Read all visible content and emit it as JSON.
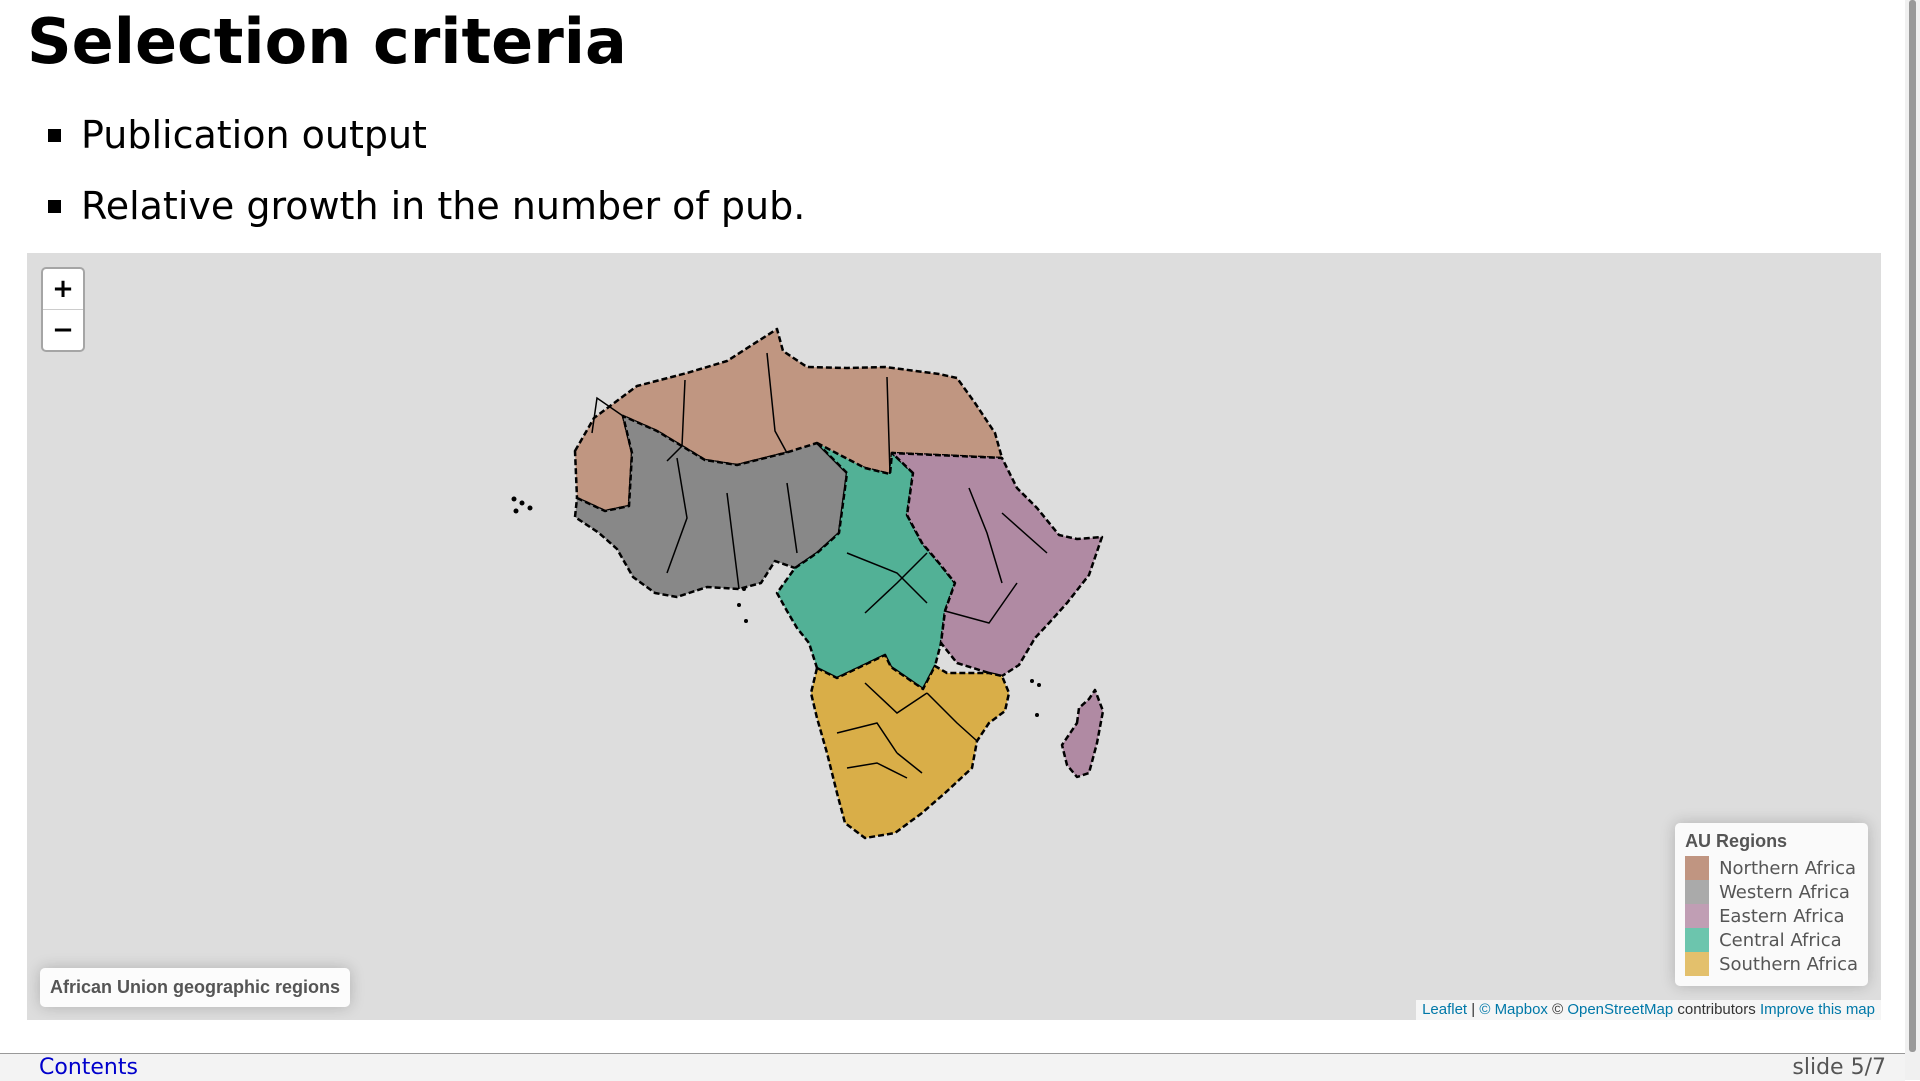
{
  "slide": {
    "title": "Selection criteria",
    "bullets": [
      "Publication output",
      "Relative growth in the number of pub."
    ]
  },
  "map": {
    "zoom_in": "+",
    "zoom_out": "−",
    "info_label": "African Union geographic regions",
    "legend": {
      "title": "AU Regions",
      "items": [
        {
          "label": "Northern Africa",
          "color": "#a66a4d"
        },
        {
          "label": "Western Africa",
          "color": "#888888"
        },
        {
          "label": "Eastern Africa",
          "color": "#a77696"
        },
        {
          "label": "Central Africa",
          "color": "#2fae8c"
        },
        {
          "label": "Southern Africa",
          "color": "#d9a62f"
        }
      ]
    },
    "region_colors": {
      "northern": "#c09681",
      "western": "#888888",
      "eastern": "#b08aa3",
      "central": "#52b196",
      "southern": "#d9ae48"
    },
    "attribution": {
      "leaflet": "Leaflet",
      "sep": " | ",
      "mapbox": "© Mapbox",
      "copy": " © ",
      "osm": "OpenStreetMap",
      "contributors": " contributors ",
      "improve": "Improve this map"
    }
  },
  "footer": {
    "contents": "Contents",
    "slide_number": "slide 5/7"
  }
}
